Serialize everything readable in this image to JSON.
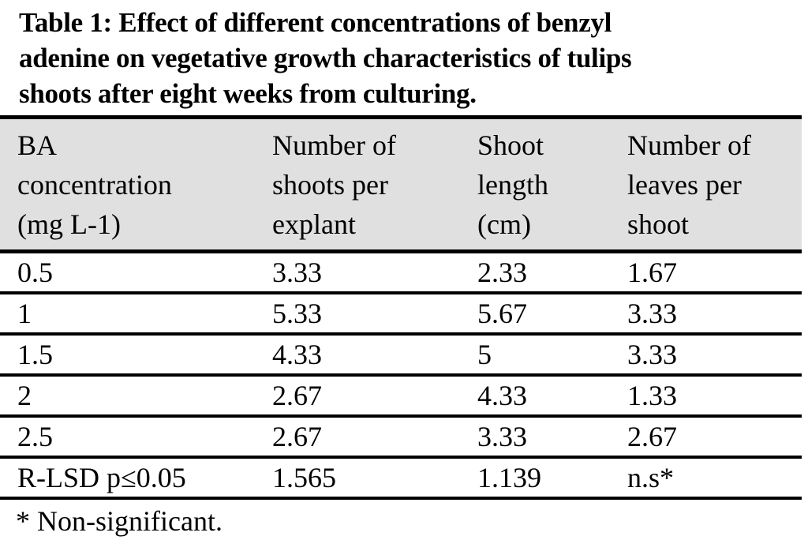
{
  "colors": {
    "page_bg": "#ffffff",
    "header_bg": "#e0e0e0",
    "border": "#000000",
    "text": "#000000"
  },
  "caption_lines": [
    "Table 1: Effect of different concentrations of benzyl",
    "adenine on vegetative growth characteristics of tulips",
    "shoots after eight weeks from culturing."
  ],
  "table": {
    "header_lines": [
      [
        "BA",
        "concentration",
        "(mg L-1)"
      ],
      [
        "Number of",
        "shoots per",
        "explant"
      ],
      [
        "Shoot",
        "length",
        "(cm)"
      ],
      [
        "Number of",
        "leaves per",
        "shoot"
      ]
    ],
    "rows": [
      [
        "0.5",
        "3.33",
        "2.33",
        "1.67"
      ],
      [
        "1",
        "5.33",
        "5.67",
        "3.33"
      ],
      [
        "1.5",
        "4.33",
        "5",
        "3.33"
      ],
      [
        "2",
        "2.67",
        "4.33",
        "1.33"
      ],
      [
        "2.5",
        "2.67",
        "3.33",
        "2.67"
      ],
      [
        "R-LSD p≤0.05",
        "1.565",
        "1.139",
        "n.s*"
      ]
    ]
  },
  "footnote": "* Non-significant."
}
